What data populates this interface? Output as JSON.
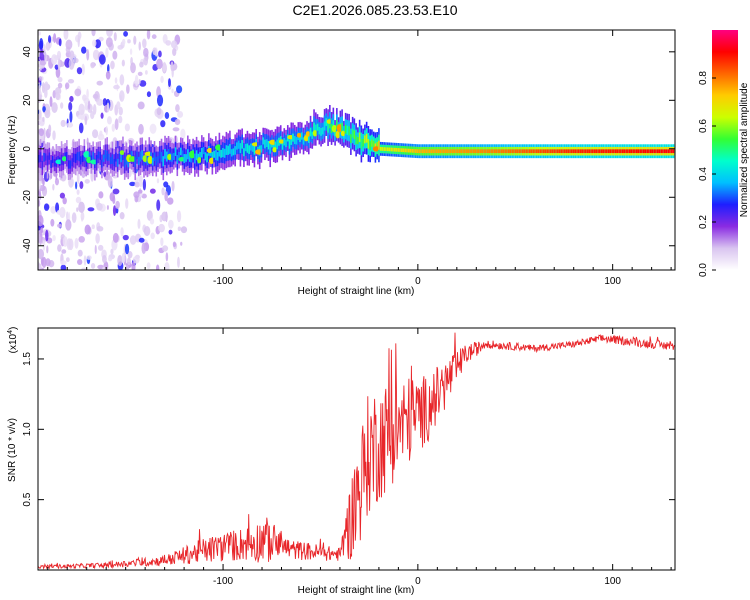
{
  "title": "C2E1.2026.085.23.53.E10",
  "colors": {
    "snr_line": "#e8262a",
    "cb_stops": [
      "#ffffff",
      "#d9c4f0",
      "#8a2be2",
      "#1e1eff",
      "#00bfff",
      "#00ffcc",
      "#33ff33",
      "#ccff00",
      "#ffcc00",
      "#ff6600",
      "#ff0000",
      "#ff0080"
    ]
  },
  "chart_data": [
    {
      "type": "heatmap",
      "name": "spectrogram",
      "xlabel": "Height of straight line (km)",
      "ylabel": "Frequency (Hz)",
      "xlim": [
        -195,
        132
      ],
      "ylim": [
        -50,
        49
      ],
      "x_ticks": [
        -100,
        0,
        100
      ],
      "x_tick_labels": [
        "-100",
        "0",
        "100"
      ],
      "y_ticks": [
        -40,
        -20,
        0,
        20,
        40
      ],
      "y_tick_labels": [
        "-40",
        "-20",
        "0",
        "20",
        "40"
      ],
      "colorbar": {
        "label": "Normalized spectral amplitude",
        "range": [
          0,
          1
        ],
        "ticks": [
          0.0,
          0.2,
          0.4,
          0.6,
          0.8
        ],
        "tick_labels": [
          "0.0",
          "0.2",
          "0.4",
          "0.6",
          "0.8"
        ]
      },
      "ridge": [
        {
          "x": -195,
          "f": -5,
          "amp": 0.25
        },
        {
          "x": -150,
          "f": -4,
          "amp": 0.3
        },
        {
          "x": -120,
          "f": -3,
          "amp": 0.35
        },
        {
          "x": -90,
          "f": 0,
          "amp": 0.4
        },
        {
          "x": -60,
          "f": 4,
          "amp": 0.42
        },
        {
          "x": -48,
          "f": 10,
          "amp": 0.45
        },
        {
          "x": -35,
          "f": 6,
          "amp": 0.5
        },
        {
          "x": -20,
          "f": 0,
          "amp": 0.65
        },
        {
          "x": 0,
          "f": -1,
          "amp": 0.75
        },
        {
          "x": 40,
          "f": -1,
          "amp": 0.8
        },
        {
          "x": 80,
          "f": -1,
          "amp": 0.88
        },
        {
          "x": 132,
          "f": -1,
          "amp": 0.92
        }
      ]
    },
    {
      "type": "line",
      "name": "snr",
      "xlabel": "Height of straight line (km)",
      "ylabel": "SNR (10 * v/v)",
      "y_exponent_label": "(x10",
      "y_exponent_power": "4",
      "y_exponent_close": ")",
      "xlim": [
        -195,
        132
      ],
      "ylim": [
        0,
        1.72
      ],
      "x_ticks": [
        -100,
        0,
        100
      ],
      "x_tick_labels": [
        "-100",
        "0",
        "100"
      ],
      "y_ticks": [
        0.5,
        1.0,
        1.5
      ],
      "y_tick_labels": [
        "0.5",
        "1.0",
        "1.5"
      ],
      "envelope": [
        {
          "x": -195,
          "base": 0.02,
          "amp": 0.02
        },
        {
          "x": -160,
          "base": 0.03,
          "amp": 0.03
        },
        {
          "x": -130,
          "base": 0.06,
          "amp": 0.06
        },
        {
          "x": -110,
          "base": 0.12,
          "amp": 0.15
        },
        {
          "x": -90,
          "base": 0.16,
          "amp": 0.2
        },
        {
          "x": -78,
          "base": 0.18,
          "amp": 0.28
        },
        {
          "x": -65,
          "base": 0.13,
          "amp": 0.12
        },
        {
          "x": -40,
          "base": 0.1,
          "amp": 0.08
        },
        {
          "x": -33,
          "base": 0.35,
          "amp": 0.6
        },
        {
          "x": -25,
          "base": 0.75,
          "amp": 0.75
        },
        {
          "x": -10,
          "base": 0.95,
          "amp": 0.6
        },
        {
          "x": 5,
          "base": 1.1,
          "amp": 0.4
        },
        {
          "x": 15,
          "base": 1.3,
          "amp": 0.3
        },
        {
          "x": 25,
          "base": 1.52,
          "amp": 0.12
        },
        {
          "x": 35,
          "base": 1.6,
          "amp": 0.05
        },
        {
          "x": 60,
          "base": 1.57,
          "amp": 0.04
        },
        {
          "x": 80,
          "base": 1.6,
          "amp": 0.04
        },
        {
          "x": 95,
          "base": 1.64,
          "amp": 0.05
        },
        {
          "x": 132,
          "base": 1.58,
          "amp": 0.05
        }
      ]
    }
  ]
}
